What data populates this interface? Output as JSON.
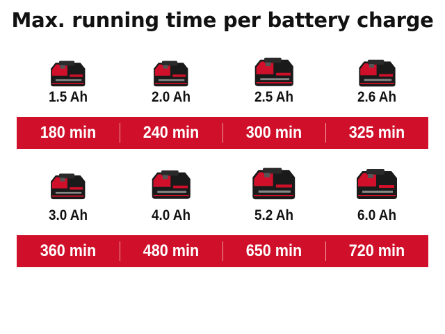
{
  "title": "Max. running time per battery charge",
  "colors": {
    "accent": "#d0102a",
    "battery_body": "#1a1a1a",
    "battery_red": "#d0102a"
  },
  "rows": [
    {
      "items": [
        {
          "capacity": "1.5 Ah",
          "runtime": "180 min"
        },
        {
          "capacity": "2.0 Ah",
          "runtime": "240 min"
        },
        {
          "capacity": "2.5 Ah",
          "runtime": "300 min"
        },
        {
          "capacity": "2.6 Ah",
          "runtime": "325 min"
        }
      ]
    },
    {
      "items": [
        {
          "capacity": "3.0 Ah",
          "runtime": "360 min"
        },
        {
          "capacity": "4.0 Ah",
          "runtime": "480 min"
        },
        {
          "capacity": "5.2 Ah",
          "runtime": "650 min"
        },
        {
          "capacity": "6.0 Ah",
          "runtime": "720 min"
        }
      ]
    }
  ]
}
